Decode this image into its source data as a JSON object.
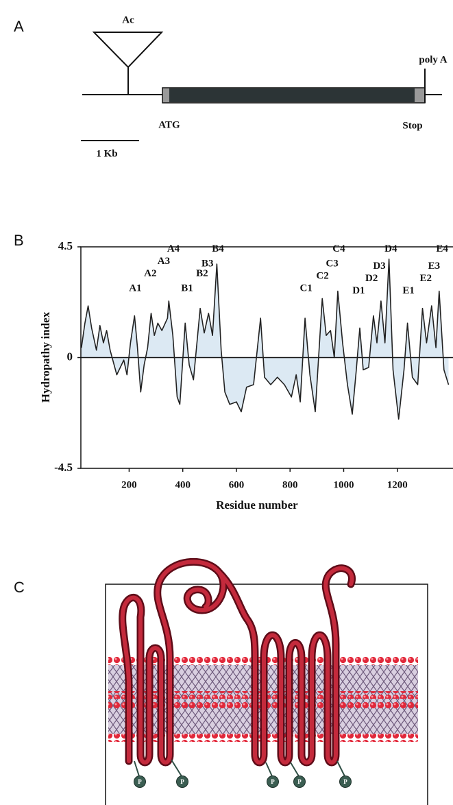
{
  "panel_a": {
    "label": "A",
    "insertion": "Ac",
    "poly_a": "poly A",
    "start": "ATG",
    "stop": "Stop",
    "scale_bar": "1 Kb"
  },
  "chart_data": {
    "type": "line",
    "panel_label": "B",
    "ylabel": "Hydropathy index",
    "xlabel": "Residue number",
    "x": [
      22,
      35,
      47,
      60,
      78,
      91,
      104,
      116,
      129,
      154,
      180,
      192,
      205,
      220,
      231,
      243,
      256,
      269,
      282,
      294,
      307,
      322,
      343,
      348,
      363,
      379,
      389,
      409,
      424,
      440,
      465,
      480,
      496,
      511,
      527,
      543,
      557,
      575,
      600,
      618,
      638,
      664,
      690,
      705,
      728,
      753,
      779,
      805,
      823,
      838,
      856,
      874,
      894,
      920,
      935,
      951,
      965,
      978,
      996,
      1014,
      1032,
      1047,
      1060,
      1073,
      1093,
      1111,
      1124,
      1139,
      1154,
      1169,
      1184,
      1205,
      1225,
      1238,
      1256,
      1276,
      1294,
      1309,
      1328,
      1344,
      1356,
      1374,
      1391
    ],
    "values": [
      0.4,
      1.4,
      2.1,
      1.2,
      0.3,
      1.3,
      0.6,
      1.1,
      0.3,
      -0.7,
      -0.1,
      -0.7,
      0.6,
      1.7,
      0.4,
      -1.4,
      -0.3,
      0.4,
      1.8,
      0.9,
      1.4,
      1.1,
      1.6,
      2.3,
      0.9,
      -1.6,
      -1.9,
      1.4,
      -0.3,
      -0.9,
      2.0,
      1.0,
      1.8,
      0.9,
      3.8,
      0.3,
      -1.4,
      -1.9,
      -1.8,
      -2.2,
      -1.2,
      -1.1,
      1.6,
      -0.8,
      -1.1,
      -0.8,
      -1.1,
      -1.6,
      -0.7,
      -1.8,
      1.6,
      -0.7,
      -2.2,
      2.4,
      0.9,
      1.1,
      0.0,
      2.7,
      0.6,
      -1.1,
      -2.3,
      -0.5,
      1.2,
      -0.5,
      -0.4,
      1.7,
      0.6,
      2.3,
      0.6,
      4.0,
      -0.5,
      -2.5,
      -0.5,
      1.4,
      -0.8,
      -1.1,
      2.0,
      0.6,
      2.1,
      0.4,
      2.7,
      -0.5,
      -1.1
    ],
    "color": "#222222",
    "fill_color": "#dce9f3",
    "zero_line": true,
    "xlim": [
      20,
      1400
    ],
    "xticks": [
      200,
      400,
      600,
      800,
      1000,
      1200
    ],
    "ylim": [
      -4.5,
      4.5
    ],
    "yticks": [
      -4.5,
      0,
      4.5
    ],
    "annotations": [
      {
        "text": "A1",
        "x": 223,
        "y": 2.8
      },
      {
        "text": "A2",
        "x": 279,
        "y": 3.4
      },
      {
        "text": "A3",
        "x": 329,
        "y": 3.9
      },
      {
        "text": "A4",
        "x": 365,
        "y": 4.4
      },
      {
        "text": "B1",
        "x": 416,
        "y": 2.8
      },
      {
        "text": "B2",
        "x": 472,
        "y": 3.4
      },
      {
        "text": "B3",
        "x": 492,
        "y": 3.8
      },
      {
        "text": "B4",
        "x": 531,
        "y": 4.4
      },
      {
        "text": "C1",
        "x": 860,
        "y": 2.8
      },
      {
        "text": "C2",
        "x": 921,
        "y": 3.3
      },
      {
        "text": "C3",
        "x": 957,
        "y": 3.8
      },
      {
        "text": "C4",
        "x": 982,
        "y": 4.4
      },
      {
        "text": "D1",
        "x": 1056,
        "y": 2.7
      },
      {
        "text": "D2",
        "x": 1104,
        "y": 3.2
      },
      {
        "text": "D3",
        "x": 1133,
        "y": 3.7
      },
      {
        "text": "D4",
        "x": 1176,
        "y": 4.4
      },
      {
        "text": "E1",
        "x": 1242,
        "y": 2.7
      },
      {
        "text": "E2",
        "x": 1306,
        "y": 3.2
      },
      {
        "text": "E3",
        "x": 1337,
        "y": 3.7
      },
      {
        "text": "E4",
        "x": 1367,
        "y": 4.4
      }
    ]
  },
  "panel_c": {
    "label": "C",
    "phosphate_labels": [
      "P",
      "P",
      "P",
      "P",
      "P"
    ]
  }
}
